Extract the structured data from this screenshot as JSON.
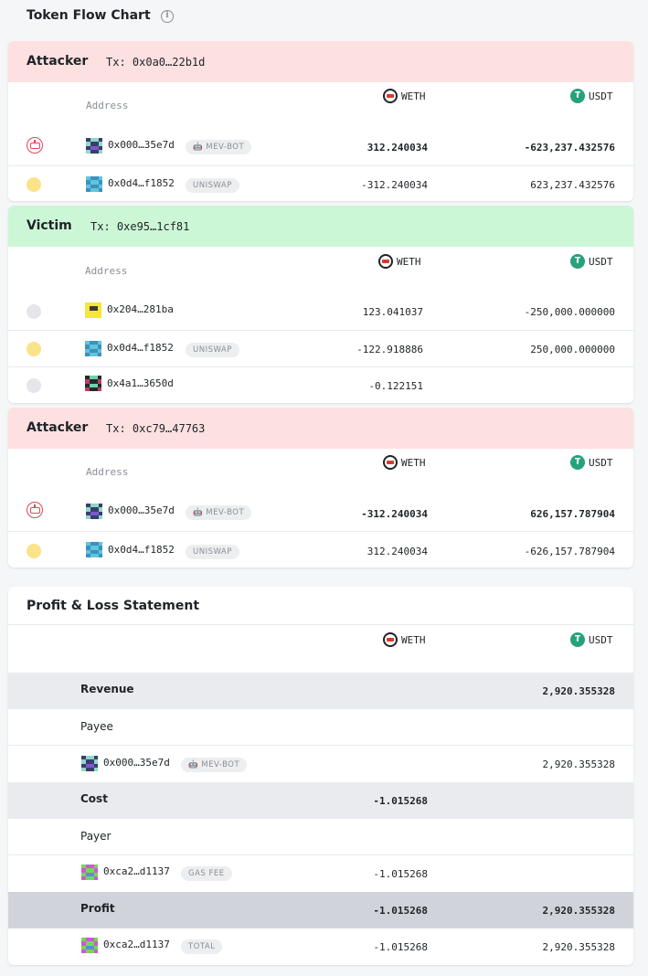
{
  "page_title": "Token Flow Chart",
  "tokens": {
    "weth": "WETH",
    "usdt": "USDT",
    "usdt_symbol": "₮"
  },
  "address_header": "Address",
  "colors": {
    "attacker_bg": "#fde0e0",
    "victim_bg": "#ccf7d6",
    "bot_icon": "#e0455a",
    "usdt": "#26a17b"
  },
  "attacker1": {
    "title": "Attacker",
    "tx": "Tx: 0x0a0…22b1d",
    "rows": [
      {
        "address": "0x000…35e7d",
        "tag": "MEV-BOT",
        "weth": "312.240034",
        "usdt": "-623,237.432576"
      },
      {
        "address": "0x0d4…f1852",
        "tag": "UNISWAP",
        "weth": "-312.240034",
        "usdt": "623,237.432576"
      }
    ]
  },
  "victim": {
    "title": "Victim",
    "tx": "Tx: 0xe95…1cf81",
    "rows": [
      {
        "address": "0x204…281ba",
        "weth": "123.041037",
        "usdt": "-250,000.000000"
      },
      {
        "address": "0x0d4…f1852",
        "tag": "UNISWAP",
        "weth": "-122.918886",
        "usdt": "250,000.000000"
      },
      {
        "address": "0x4a1…3650d",
        "weth": "-0.122151",
        "usdt": ""
      }
    ]
  },
  "attacker2": {
    "title": "Attacker",
    "tx": "Tx: 0xc79…47763",
    "rows": [
      {
        "address": "0x000…35e7d",
        "tag": "MEV-BOT",
        "weth": "-312.240034",
        "usdt": "626,157.787904"
      },
      {
        "address": "0x0d4…f1852",
        "tag": "UNISWAP",
        "weth": "312.240034",
        "usdt": "-626,157.787904"
      }
    ]
  },
  "pnl": {
    "title": "Profit & Loss Statement",
    "revenue": {
      "label": "Revenue",
      "weth": "",
      "usdt": "2,920.355328"
    },
    "payee": {
      "label": "Payee",
      "address": "0x000…35e7d",
      "tag": "MEV-BOT",
      "weth": "",
      "usdt": "2,920.355328"
    },
    "cost": {
      "label": "Cost",
      "weth": "-1.015268",
      "usdt": ""
    },
    "payer": {
      "label": "Payer",
      "address": "0xca2…d1137",
      "tag": "GAS FEE",
      "weth": "-1.015268",
      "usdt": ""
    },
    "profit": {
      "label": "Profit",
      "weth": "-1.015268",
      "usdt": "2,920.355328"
    },
    "total": {
      "address": "0xca2…d1137",
      "tag": "TOTAL",
      "weth": "-1.015268",
      "usdt": "2,920.355328"
    }
  }
}
